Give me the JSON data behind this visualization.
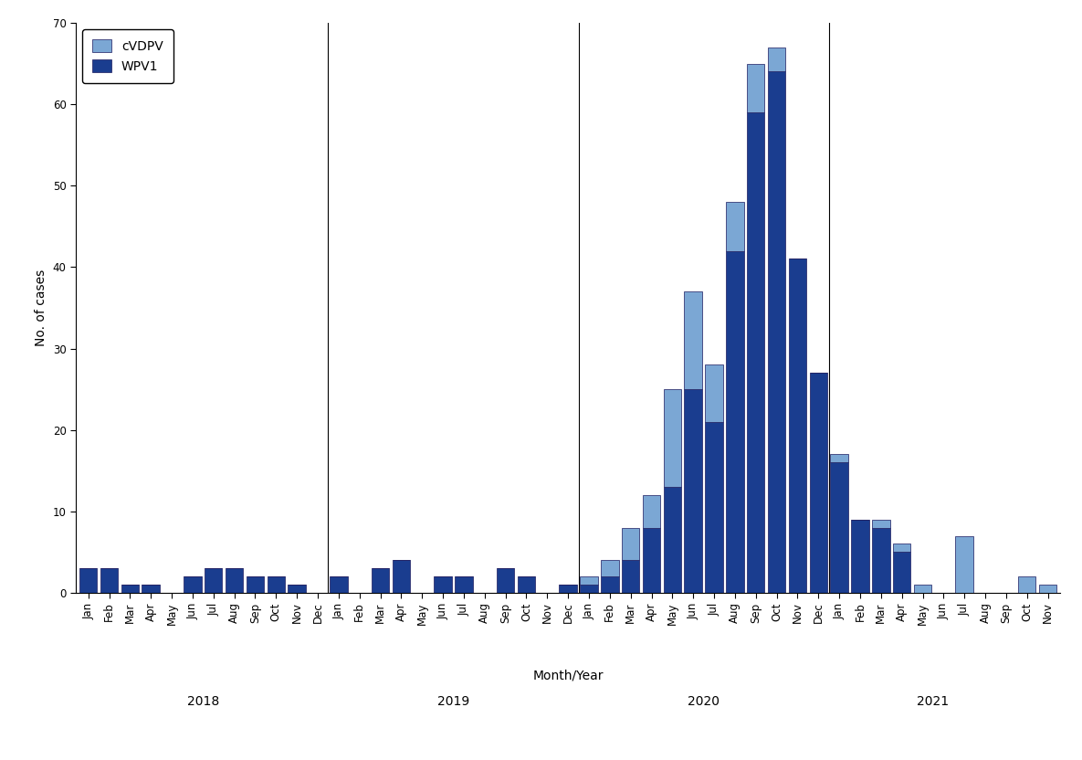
{
  "months": [
    "Jan",
    "Feb",
    "Mar",
    "Apr",
    "May",
    "Jun",
    "Jul",
    "Aug",
    "Sep",
    "Oct",
    "Nov",
    "Dec",
    "Jan",
    "Feb",
    "Mar",
    "Apr",
    "May",
    "Jun",
    "Jul",
    "Aug",
    "Sep",
    "Oct",
    "Nov",
    "Dec",
    "Jan",
    "Feb",
    "Mar",
    "Apr",
    "May",
    "Jun",
    "Jul",
    "Aug",
    "Sep",
    "Oct",
    "Nov",
    "Dec",
    "Jan",
    "Feb",
    "Mar",
    "Apr",
    "May",
    "Jun",
    "Jul",
    "Aug",
    "Sep",
    "Oct",
    "Nov"
  ],
  "years": [
    "2018",
    "2018",
    "2018",
    "2018",
    "2018",
    "2018",
    "2018",
    "2018",
    "2018",
    "2018",
    "2018",
    "2018",
    "2019",
    "2019",
    "2019",
    "2019",
    "2019",
    "2019",
    "2019",
    "2019",
    "2019",
    "2019",
    "2019",
    "2019",
    "2020",
    "2020",
    "2020",
    "2020",
    "2020",
    "2020",
    "2020",
    "2020",
    "2020",
    "2020",
    "2020",
    "2020",
    "2021",
    "2021",
    "2021",
    "2021",
    "2021",
    "2021",
    "2021",
    "2021",
    "2021",
    "2021",
    "2021"
  ],
  "cVDPV": [
    0,
    0,
    0,
    0,
    0,
    0,
    0,
    0,
    0,
    0,
    0,
    0,
    0,
    0,
    0,
    0,
    0,
    0,
    0,
    0,
    0,
    0,
    0,
    0,
    1,
    2,
    4,
    4,
    12,
    12,
    7,
    6,
    6,
    3,
    0,
    0,
    1,
    0,
    1,
    1,
    1,
    0,
    7,
    0,
    0,
    2,
    1
  ],
  "WPV1": [
    3,
    3,
    1,
    1,
    0,
    2,
    3,
    3,
    2,
    2,
    1,
    0,
    2,
    0,
    3,
    4,
    0,
    2,
    2,
    0,
    3,
    2,
    0,
    1,
    1,
    2,
    4,
    8,
    13,
    25,
    21,
    42,
    59,
    64,
    41,
    27,
    16,
    9,
    8,
    5,
    0,
    0,
    0,
    0,
    0,
    0,
    0
  ],
  "year_labels": [
    "2018",
    "2019",
    "2020",
    "2021"
  ],
  "year_dividers": [
    11.5,
    23.5,
    35.5
  ],
  "ylabel": "No. of cases",
  "xlabel": "Month/Year",
  "ylim": [
    0,
    70
  ],
  "yticks": [
    0,
    10,
    20,
    30,
    40,
    50,
    60,
    70
  ],
  "cVDPV_color": "#7ba7d4",
  "WPV1_color": "#1a3d8f",
  "edge_color": "#1a1a5e",
  "background_color": "#ffffff",
  "tick_fontsize": 8.5,
  "axis_fontsize": 10,
  "bar_width": 0.85
}
